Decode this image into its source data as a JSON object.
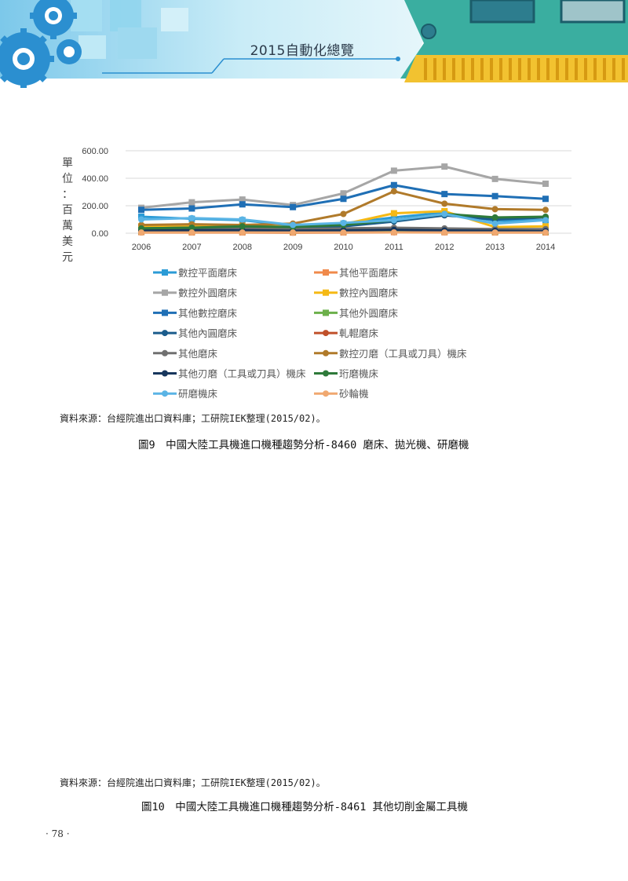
{
  "header": {
    "title": "2015自動化總覽"
  },
  "colors": {
    "header_light": "#9fdcee",
    "header_mid": "#4fb3d6",
    "gear_blue": "#2b8fd0",
    "circuit_teal": "#3aaea0",
    "pin_yellow": "#f2c230",
    "chart_bg": "#ffffff",
    "grid": "#d9d9d9"
  },
  "figure9": {
    "y_unit_chars": [
      "單",
      "位",
      "：",
      "百",
      "萬",
      "美",
      "元"
    ],
    "source": "資料來源：台經院進出口資料庫；工研院IEK整理(2015/02)。",
    "caption": "圖9　中國大陸工具機進口機種趨勢分析-8460 磨床、拋光機、研磨機"
  },
  "figure10": {
    "source": "資料來源：台經院進出口資料庫；工研院IEK整理(2015/02)。",
    "caption": "圖10　中國大陸工具機進口機種趨勢分析-8461 其他切削金屬工具機"
  },
  "page_number": "‧ 78 ‧",
  "chart_data": {
    "type": "line",
    "x": [
      "2006",
      "2007",
      "2008",
      "2009",
      "2010",
      "2011",
      "2012",
      "2013",
      "2014"
    ],
    "yticks": [
      "0.00",
      "200.00",
      "400.00",
      "600.00"
    ],
    "ylim": [
      0,
      600
    ],
    "grid": true,
    "legend_position": "bottom",
    "series": [
      {
        "name": "數控平面磨床",
        "color": "#2b9bd6",
        "marker": "square",
        "values": [
          120,
          105,
          95,
          55,
          70,
          115,
          150,
          90,
          95
        ]
      },
      {
        "name": "其他平面磨床",
        "color": "#f08a4b",
        "marker": "square",
        "values": [
          8,
          6,
          6,
          5,
          6,
          8,
          7,
          6,
          6
        ]
      },
      {
        "name": "數控外圓磨床",
        "color": "#a6a6a6",
        "marker": "square",
        "values": [
          185,
          225,
          245,
          205,
          290,
          455,
          485,
          395,
          360
        ]
      },
      {
        "name": "數控內圓磨床",
        "color": "#f5b915",
        "marker": "square",
        "values": [
          50,
          55,
          55,
          45,
          65,
          145,
          160,
          45,
          50
        ]
      },
      {
        "name": "其他數控磨床",
        "color": "#1f6fb5",
        "marker": "square",
        "values": [
          170,
          180,
          210,
          190,
          250,
          350,
          285,
          270,
          250
        ]
      },
      {
        "name": "其他外圓磨床",
        "color": "#6cb04a",
        "marker": "square",
        "values": [
          15,
          15,
          15,
          12,
          15,
          18,
          15,
          12,
          12
        ]
      },
      {
        "name": "其他內圓磨床",
        "color": "#1a5c8c",
        "marker": "circle",
        "values": [
          35,
          40,
          45,
          40,
          50,
          85,
          130,
          100,
          115
        ]
      },
      {
        "name": "軋輥磨床",
        "color": "#c0502a",
        "marker": "circle",
        "values": [
          5,
          5,
          5,
          4,
          5,
          6,
          6,
          5,
          5
        ]
      },
      {
        "name": "其他磨床",
        "color": "#707070",
        "marker": "circle",
        "values": [
          30,
          30,
          35,
          30,
          35,
          40,
          35,
          30,
          30
        ]
      },
      {
        "name": "數控刃磨（工具或刀具）機床",
        "color": "#b07a2a",
        "marker": "circle",
        "values": [
          60,
          65,
          60,
          70,
          140,
          305,
          215,
          175,
          170
        ]
      },
      {
        "name": "其他刃磨（工具或刀具）機床",
        "color": "#17365d",
        "marker": "circle",
        "values": [
          20,
          22,
          22,
          18,
          20,
          25,
          20,
          18,
          15
        ]
      },
      {
        "name": "珩磨機床",
        "color": "#2e7a3a",
        "marker": "circle",
        "values": [
          35,
          40,
          50,
          45,
          60,
          95,
          140,
          115,
          120
        ]
      },
      {
        "name": "研磨機床",
        "color": "#5ab4e5",
        "marker": "circle",
        "values": [
          100,
          110,
          100,
          60,
          75,
          95,
          140,
          70,
          95
        ]
      },
      {
        "name": "砂輪機",
        "color": "#f0a870",
        "marker": "circle",
        "values": [
          5,
          5,
          5,
          5,
          5,
          6,
          5,
          5,
          5
        ]
      }
    ]
  }
}
